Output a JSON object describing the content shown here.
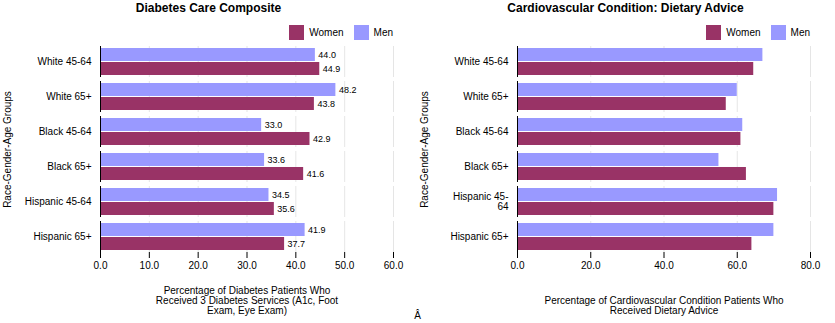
{
  "chart_data": [
    {
      "type": "bar",
      "orientation": "horizontal",
      "title": "Diabetes Care Composite",
      "categories": [
        "White 45-64",
        "White 65+",
        "Black 45-64",
        "Black 65+",
        "Hispanic 45-64",
        "Hispanic 65+"
      ],
      "series": [
        {
          "name": "Women",
          "color": "#993366",
          "values": [
            44.9,
            43.8,
            42.9,
            41.6,
            35.6,
            37.7
          ],
          "value_labels": [
            "44.9",
            "43.8",
            "42.9",
            "41.6",
            "35.6",
            "37.7"
          ]
        },
        {
          "name": "Men",
          "color": "#9999FF",
          "values": [
            44.0,
            48.2,
            33.0,
            33.6,
            34.5,
            41.9
          ],
          "value_labels": [
            "44.0",
            "48.2",
            "33.0",
            "33.6",
            "34.5",
            "41.9"
          ]
        }
      ],
      "xlim": [
        0,
        60
      ],
      "xticks": [
        {
          "value": 0,
          "label": "0.0"
        },
        {
          "value": 10,
          "label": "10.0"
        },
        {
          "value": 20,
          "label": "20.0"
        },
        {
          "value": 30,
          "label": "30.0"
        },
        {
          "value": 40,
          "label": "40.0"
        },
        {
          "value": 50,
          "label": "50.0"
        },
        {
          "value": 60,
          "label": "60.0"
        }
      ],
      "xlabel": "Percentage of Diabetes Patients Who\nReceived 3 Diabetes Services (A1c, Foot\nExam, Eye Exam)",
      "ylabel": "Race-Gender-Age Groups",
      "grid": true,
      "legend": "right",
      "data_labels": true,
      "annotations": [
        "Â"
      ]
    },
    {
      "type": "bar",
      "orientation": "horizontal",
      "title": "Cardiovascular Condition: Dietary Advice",
      "categories": [
        "White 45-64",
        "White 65+",
        "Black 45-64",
        "Black 65+",
        "Hispanic 45-\n64",
        "Hispanic 65+"
      ],
      "series": [
        {
          "name": "Women",
          "color": "#993366",
          "values": [
            64.5,
            57.0,
            61.0,
            62.5,
            70.0,
            64.0
          ]
        },
        {
          "name": "Men",
          "color": "#9999FF",
          "values": [
            67.0,
            60.0,
            61.5,
            55.0,
            71.0,
            70.0
          ]
        }
      ],
      "xlim": [
        0,
        80
      ],
      "xticks": [
        {
          "value": 0,
          "label": "0.0"
        },
        {
          "value": 20,
          "label": "20.0"
        },
        {
          "value": 40,
          "label": "40.0"
        },
        {
          "value": 60,
          "label": "60.0"
        },
        {
          "value": 80,
          "label": "80.0"
        }
      ],
      "xlabel": "Percentage of Cardiovascular Condition Patients Who\nReceived Dietary Advice",
      "ylabel": "Race-Gender-Age Groups",
      "grid": true,
      "legend": "right",
      "data_labels": false
    }
  ]
}
